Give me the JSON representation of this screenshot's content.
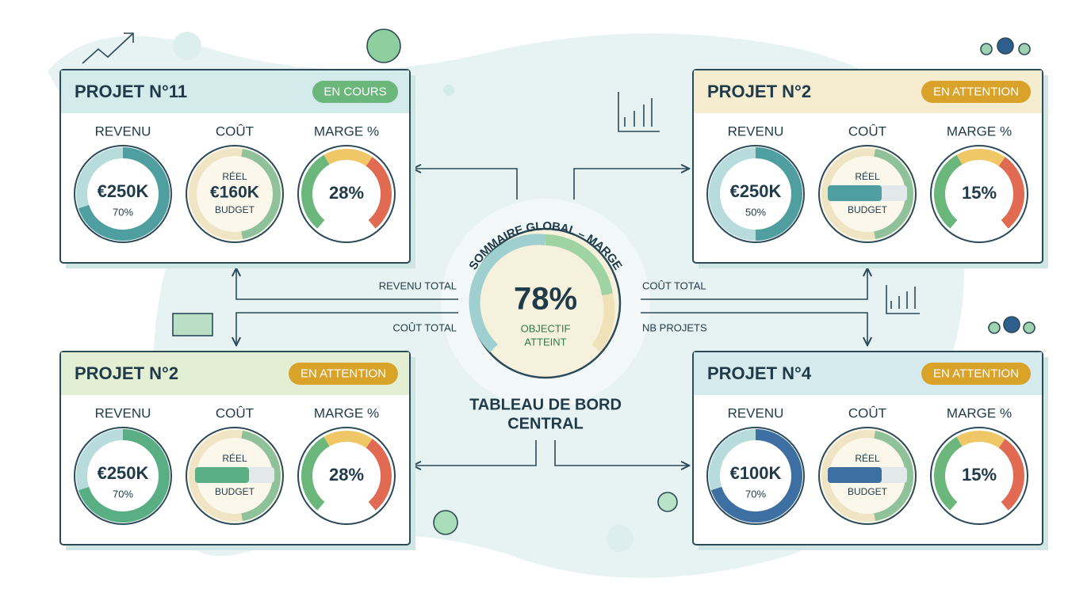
{
  "center": {
    "arc_title": "SOMMAIRE GLOBAL – MARGE",
    "value": "78%",
    "caption": [
      "OBJECTIF",
      "ATTEINT"
    ],
    "title": [
      "TABLEAU DE BORD",
      "CENTRAL"
    ]
  },
  "connectors": [
    "REVENU TOTAL",
    "COÛT TOTAL",
    "COÛT TOTAL",
    "NB PROJETS"
  ],
  "projects": [
    {
      "title": "PROJET N°11",
      "status": "EN COURS",
      "revenue": {
        "label": "REVENU",
        "value": "€250K",
        "sub": "70%"
      },
      "cost": {
        "label": "COÛT",
        "top": "RÉEL",
        "value": "€160K",
        "bottom": "BUDGET"
      },
      "margin": {
        "label": "MARGE %",
        "value": "28%"
      }
    },
    {
      "title": "PROJET N°2",
      "status": "EN ATTENTION",
      "revenue": {
        "label": "REVENU",
        "value": "€250K",
        "sub": "50%"
      },
      "cost": {
        "label": "COÛT",
        "top": "RÉEL",
        "bottom": "BUDGET"
      },
      "margin": {
        "label": "MARGE %",
        "value": "15%"
      }
    },
    {
      "title": "PROJET N°2",
      "status": "EN ATTENTION",
      "revenue": {
        "label": "REVENU",
        "value": "€250K",
        "sub": "70%"
      },
      "cost": {
        "label": "COÛT",
        "top": "RÉEL",
        "bottom": "BUDGET"
      },
      "margin": {
        "label": "MARGE %",
        "value": "28%"
      }
    },
    {
      "title": "PROJET N°4",
      "status": "EN ATTENTION",
      "revenue": {
        "label": "REVENU",
        "value": "€100K",
        "sub": "70%"
      },
      "cost": {
        "label": "COÛT",
        "top": "RÉEL",
        "bottom": "BUDGET"
      },
      "margin": {
        "label": "MARGE %",
        "value": "15%"
      }
    }
  ]
}
